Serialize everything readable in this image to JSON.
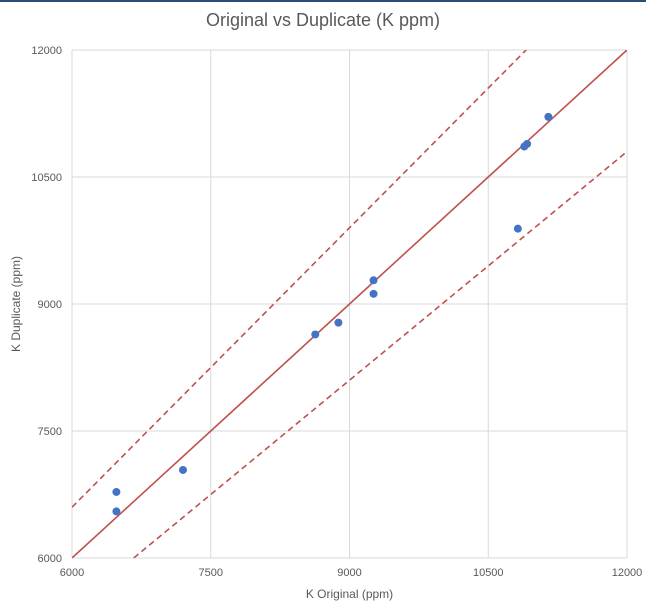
{
  "chart_data": {
    "type": "scatter",
    "title": "Original vs Duplicate (K ppm)",
    "xlabel": "K Original (ppm)",
    "ylabel": "K Duplicate (ppm)",
    "xlim": [
      6000,
      12000
    ],
    "ylim": [
      6000,
      12000
    ],
    "xticks": [
      6000,
      7500,
      9000,
      10500,
      12000
    ],
    "yticks": [
      6000,
      7500,
      9000,
      10500,
      12000
    ],
    "grid": true,
    "legend": "none",
    "series": [
      {
        "type": "scatter",
        "color": "#4472c4",
        "points": [
          {
            "x": 6480,
            "y": 6780
          },
          {
            "x": 6480,
            "y": 6550
          },
          {
            "x": 7200,
            "y": 7040
          },
          {
            "x": 8630,
            "y": 8640
          },
          {
            "x": 8880,
            "y": 8780
          },
          {
            "x": 9260,
            "y": 9280
          },
          {
            "x": 9260,
            "y": 9120
          },
          {
            "x": 10820,
            "y": 9890
          },
          {
            "x": 10890,
            "y": 10860
          },
          {
            "x": 10920,
            "y": 10890
          },
          {
            "x": 11150,
            "y": 11210
          }
        ]
      },
      {
        "type": "line",
        "style": "solid",
        "color": "#c0504d",
        "x": [
          6000,
          12000
        ],
        "y": [
          6000,
          12000
        ]
      },
      {
        "type": "line",
        "style": "dashed",
        "color": "#c0504d",
        "x": [
          6000,
          12000
        ],
        "y": [
          6600,
          13200
        ]
      },
      {
        "type": "line",
        "style": "dashed",
        "color": "#c0504d",
        "x": [
          6000,
          12000
        ],
        "y": [
          5400,
          10800
        ]
      }
    ]
  }
}
